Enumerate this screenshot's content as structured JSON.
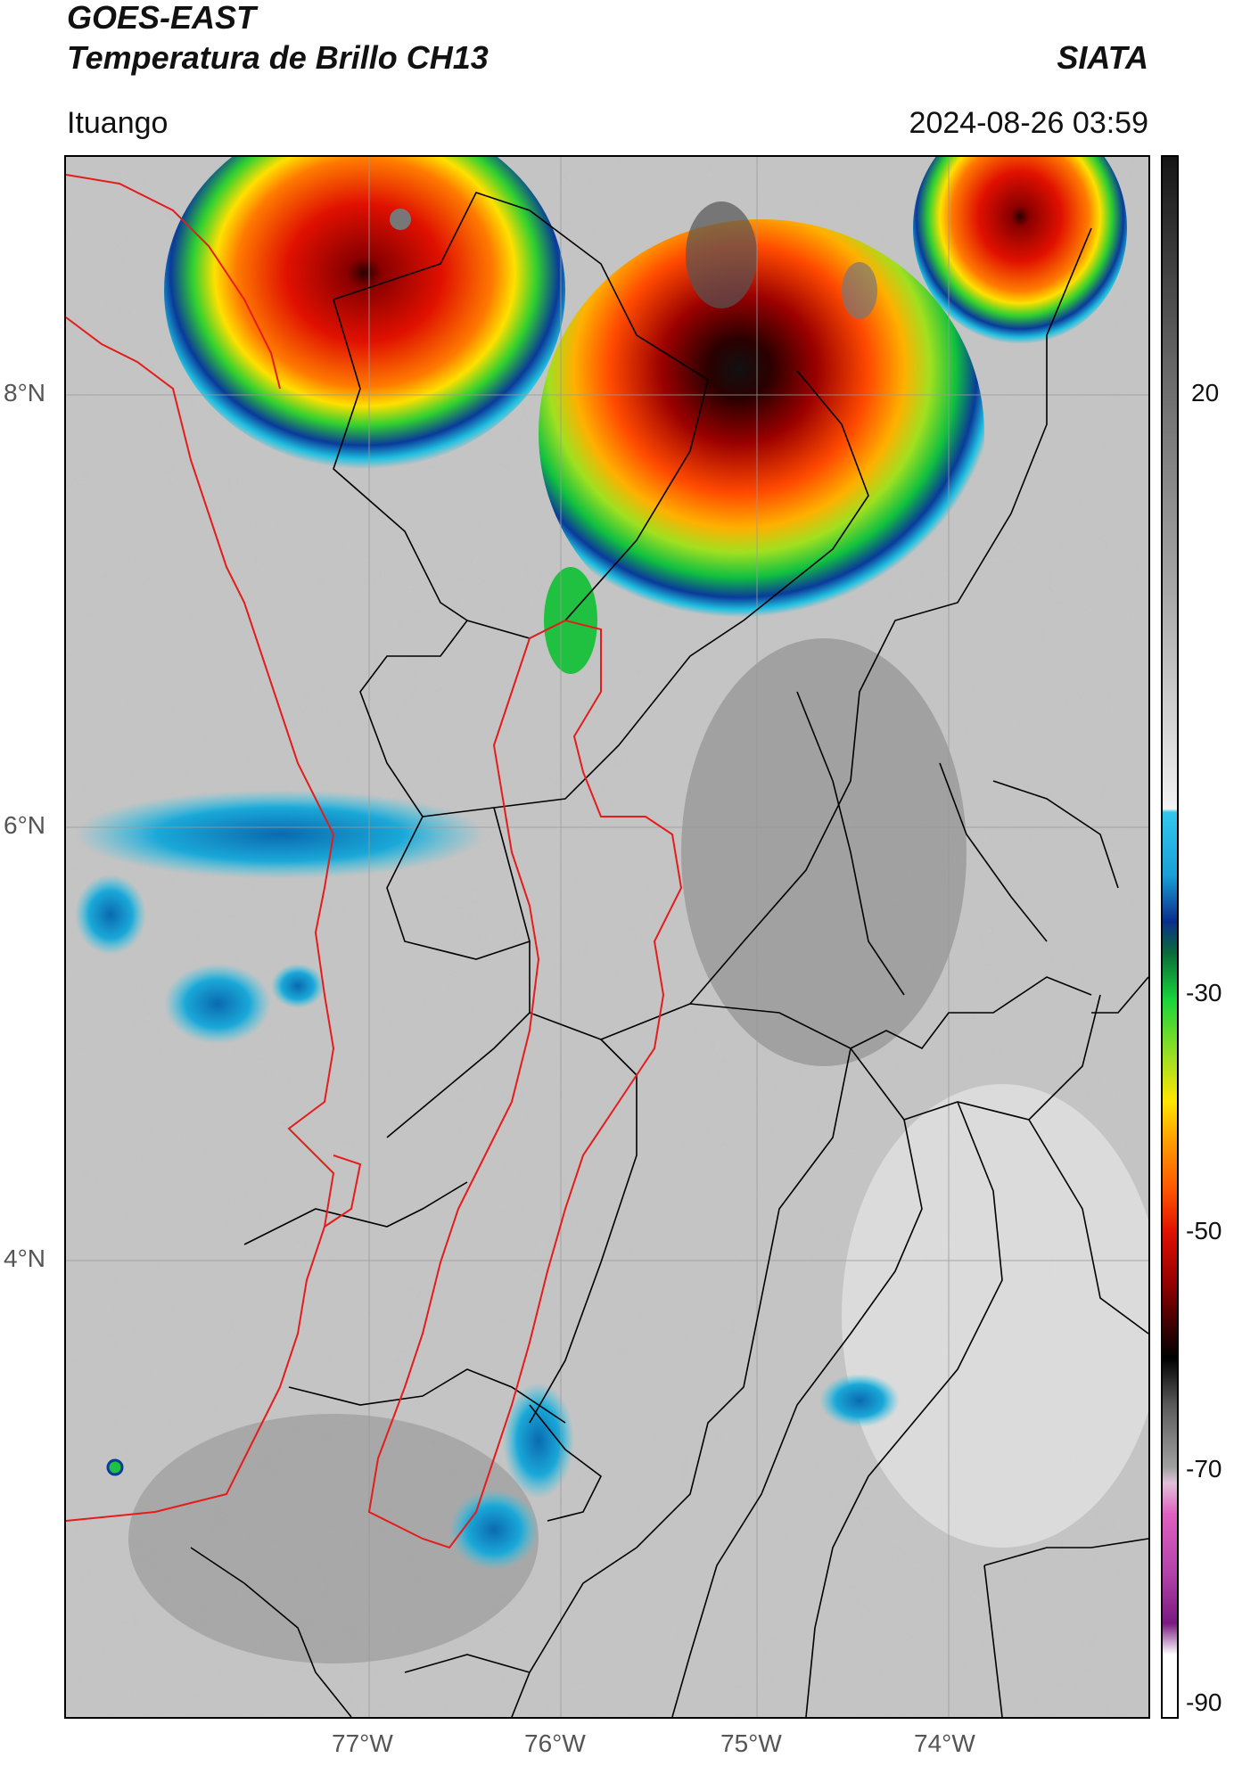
{
  "header": {
    "satellite": "GOES-EAST",
    "product": "Temperatura de Brillo CH13",
    "agency": "SIATA",
    "location": "Ituango",
    "datetime": "2024-08-26 03:59"
  },
  "map": {
    "lat_labels": [
      "8°N",
      "6°N",
      "4°N"
    ],
    "lon_labels": [
      "77°W",
      "76°W",
      "75°W",
      "74°W"
    ]
  },
  "colorbar": {
    "tick_labels": [
      "20",
      "-30",
      "-50",
      "-70",
      "-90"
    ],
    "colors": {
      "warm_gray_top": "#1a1a1a",
      "light_gray": "#f2f2f2",
      "cyan": "#17bde0",
      "blue": "#0a2f8c",
      "green": "#17d43a",
      "yellow": "#ffe600",
      "orange": "#ff6a00",
      "red": "#d80000",
      "dark_red": "#3a0000",
      "black": "#000000",
      "pink": "#e060c0",
      "purple": "#7a1a80",
      "white": "#ffffff"
    }
  }
}
